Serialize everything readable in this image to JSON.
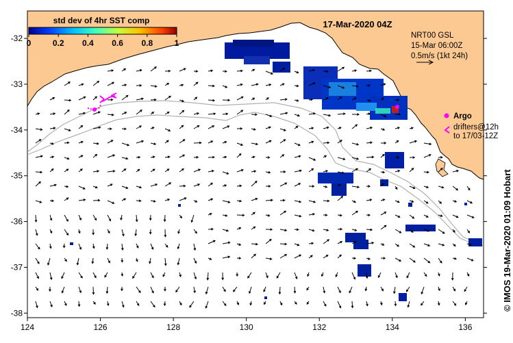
{
  "map": {
    "date_title": "17-Mar-2020 04Z",
    "colorbar": {
      "title": "std dev of 4hr SST comp",
      "ticks": [
        "0",
        "0.2",
        "0.4",
        "0.6",
        "0.8",
        "1"
      ],
      "range": [
        0,
        1
      ],
      "colors": [
        "#00008f",
        "#0040ff",
        "#00c0ff",
        "#40ffbf",
        "#c0ff40",
        "#ffc000",
        "#ff4000",
        "#8f0000"
      ]
    },
    "model": {
      "line1": "NRT00 GSL",
      "line2": "15-Mar 06:00Z",
      "line3": "0.5m/s (1kt 24h)"
    },
    "argo_label": "Argo",
    "drifters": {
      "line1": "drifters@12h",
      "line2": "to 17/03-12Z"
    },
    "credit": "© IMOS 19-Mar-2020 01:09 Hobart",
    "lon_ticks": [
      "124",
      "126",
      "128",
      "130",
      "132",
      "134",
      "136"
    ],
    "lat_ticks": [
      "-32",
      "-33",
      "-34",
      "-35",
      "-36",
      "-37",
      "-38"
    ],
    "lon_range": [
      124,
      136.5
    ],
    "lat_range": [
      -38.1,
      -31.4
    ],
    "colors": {
      "land": "#fcc992",
      "coastline": "#000000",
      "bathymetry": "#b0b0b0",
      "arrows": "#000000",
      "drifter_magenta": "#ff00ff"
    }
  }
}
